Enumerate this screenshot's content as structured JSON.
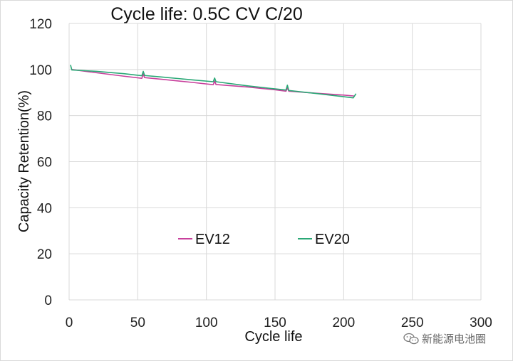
{
  "chart_data": {
    "type": "line",
    "title": "Cycle life: 0.5C CV C/20",
    "xlabel": "Cycle life",
    "ylabel": "Capacity Retention(%)",
    "xlim": [
      0,
      300
    ],
    "ylim": [
      0,
      120
    ],
    "xticks": [
      0,
      50,
      100,
      150,
      200,
      250,
      300
    ],
    "yticks": [
      0,
      20,
      40,
      60,
      80,
      100,
      120
    ],
    "grid": true,
    "legend_position": "inside-bottom",
    "series": [
      {
        "name": "EV12",
        "color": "#c8409c",
        "x": [
          2,
          20,
          40,
          53,
          54,
          55,
          70,
          90,
          105,
          106,
          107,
          130,
          150,
          158,
          159,
          160,
          180,
          200,
          208
        ],
        "y": [
          100,
          98.6,
          97.1,
          96.2,
          98,
          96.5,
          95.6,
          94.4,
          93.4,
          95,
          93.5,
          92.4,
          91.2,
          90.6,
          92,
          90.6,
          89.7,
          88.9,
          88.5
        ]
      },
      {
        "name": "EV20",
        "color": "#2aa876",
        "x": [
          1,
          2,
          20,
          40,
          53,
          54,
          55,
          70,
          90,
          105,
          106,
          107,
          130,
          150,
          158,
          159,
          160,
          180,
          200,
          207,
          209
        ],
        "y": [
          102,
          99.8,
          99.2,
          98.2,
          97.3,
          99.2,
          97.4,
          96.6,
          95.5,
          94.7,
          96.3,
          94.7,
          92.9,
          91.6,
          91.1,
          93.2,
          90.9,
          89.6,
          88.2,
          87.7,
          89.5
        ]
      }
    ]
  },
  "watermark": {
    "text": "新能源电池圈",
    "icon": "wechat-icon"
  }
}
